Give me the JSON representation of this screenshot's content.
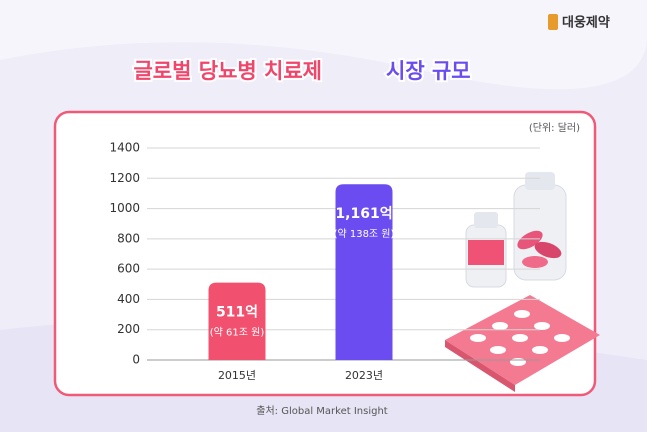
{
  "brand": "대웅제약",
  "chart_data": {
    "type": "bar",
    "title_parts": [
      "글로벌 당뇨병 치료제",
      "시장 규모"
    ],
    "unit": "(단위: 달러)",
    "categories": [
      "2015년",
      "2023년"
    ],
    "values": [
      511,
      1161
    ],
    "value_labels": [
      "511억",
      "1,161억"
    ],
    "sub_labels": [
      "(약 61조 원)",
      "(약 138조 원)"
    ],
    "colors": [
      "#f2506f",
      "#6a4cf0"
    ],
    "ylim": [
      0,
      1400
    ],
    "yticks": [
      0,
      200,
      400,
      600,
      800,
      1000,
      1200,
      1400
    ],
    "grid": true,
    "source": "출처: Global Market Insight"
  }
}
